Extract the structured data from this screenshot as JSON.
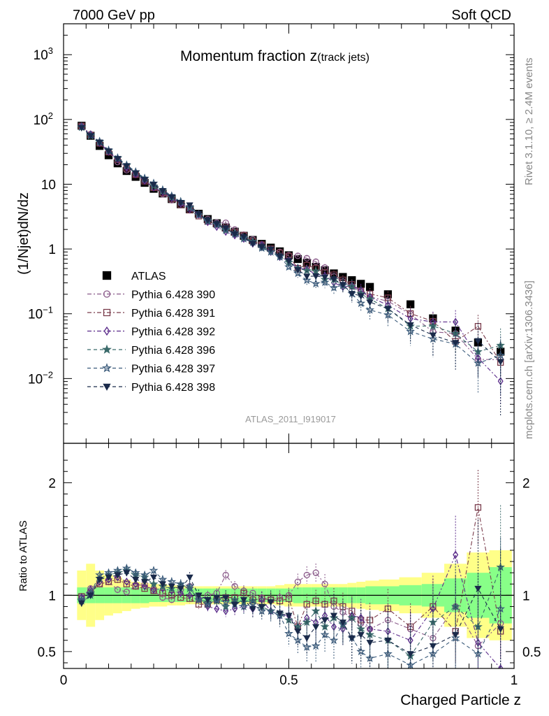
{
  "header": {
    "left": "7000 GeV pp",
    "right": "Soft QCD"
  },
  "side": {
    "rivet": "Rivet 3.1.10, ≥ 2.4M events",
    "mcplots": "mcplots.cern.ch [arXiv:1306.3436]"
  },
  "chart_data": {
    "type": "scatter",
    "title": "Momentum fraction",
    "title_var": "z",
    "title_sub": "(track jets)",
    "xlabel": "Charged Particle z",
    "ylabel": "(1/Njet)dN/dz",
    "ratio_label": "Ratio to ATLAS",
    "analysis_id": "ATLAS_2011_I919017",
    "xlim": [
      0,
      1
    ],
    "ylim": [
      0.001,
      3000
    ],
    "y_scale": "log",
    "ratio_ylim": [
      0.35,
      2.35
    ],
    "x_ticks": [
      "0",
      "0.5",
      "1"
    ],
    "y_ticks": [
      "10^3",
      "10^2",
      "10",
      "1",
      "10^-1",
      "10^-2"
    ],
    "ratio_ticks": [
      "0.5",
      "1",
      "2"
    ],
    "x": [
      0.04,
      0.06,
      0.08,
      0.1,
      0.12,
      0.14,
      0.16,
      0.18,
      0.2,
      0.22,
      0.24,
      0.26,
      0.28,
      0.3,
      0.32,
      0.34,
      0.36,
      0.38,
      0.4,
      0.42,
      0.44,
      0.46,
      0.48,
      0.5,
      0.52,
      0.54,
      0.56,
      0.58,
      0.6,
      0.62,
      0.64,
      0.66,
      0.68,
      0.72,
      0.77,
      0.82,
      0.87,
      0.92,
      0.97
    ],
    "atlas": [
      80,
      56,
      39,
      28,
      21,
      16,
      13,
      10.5,
      8.5,
      7.2,
      5.9,
      4.9,
      4.1,
      3.5,
      2.9,
      2.5,
      2.15,
      1.85,
      1.6,
      1.38,
      1.2,
      1.05,
      0.92,
      0.8,
      0.7,
      0.61,
      0.53,
      0.47,
      0.42,
      0.37,
      0.33,
      0.29,
      0.26,
      0.2,
      0.14,
      0.085,
      0.055,
      0.036,
      0.026
    ],
    "atlas_band_inner": [
      0.07,
      0.07,
      0.07,
      0.07,
      0.07,
      0.07,
      0.07,
      0.07,
      0.06,
      0.06,
      0.06,
      0.06,
      0.06,
      0.06,
      0.06,
      0.06,
      0.06,
      0.06,
      0.06,
      0.06,
      0.06,
      0.06,
      0.06,
      0.06,
      0.07,
      0.07,
      0.07,
      0.07,
      0.07,
      0.07,
      0.07,
      0.07,
      0.08,
      0.08,
      0.09,
      0.1,
      0.15,
      0.2,
      0.25
    ],
    "atlas_band_outer": [
      0.22,
      0.28,
      0.22,
      0.18,
      0.16,
      0.14,
      0.12,
      0.11,
      0.1,
      0.1,
      0.09,
      0.09,
      0.08,
      0.08,
      0.08,
      0.08,
      0.08,
      0.08,
      0.08,
      0.08,
      0.08,
      0.08,
      0.09,
      0.1,
      0.1,
      0.1,
      0.1,
      0.1,
      0.1,
      0.1,
      0.11,
      0.12,
      0.13,
      0.14,
      0.16,
      0.2,
      0.28,
      0.38,
      0.4
    ],
    "series": [
      {
        "name": "ATLAS",
        "color": "#000000",
        "marker": "square-filled",
        "line": "none",
        "ratio": []
      },
      {
        "name": "Pythia 6.428 390",
        "color": "#8a5a8a",
        "marker": "circle-open",
        "line": "dash-dot",
        "ratio": [
          0.98,
          1.06,
          1.1,
          1.12,
          1.05,
          1.03,
          1.08,
          1.1,
          1.04,
          0.98,
          0.96,
          1.05,
          1.08,
          0.96,
          1.0,
          1.02,
          1.18,
          1.08,
          1.04,
          1.02,
          0.98,
          0.96,
          0.98,
          1.0,
          1.12,
          1.18,
          1.2,
          1.1,
          0.9,
          0.85,
          0.8,
          0.75,
          0.7,
          0.78,
          0.7,
          0.62,
          0.9,
          0.55,
          0.75
        ]
      },
      {
        "name": "Pythia 6.428 391",
        "color": "#7a3c4c",
        "marker": "square-open",
        "line": "dash-dot",
        "ratio": [
          0.99,
          1.02,
          1.1,
          1.12,
          1.14,
          1.1,
          1.08,
          1.06,
          1.04,
          1.02,
          1.0,
          0.98,
          0.97,
          0.92,
          0.92,
          0.96,
          0.98,
          0.98,
          1.02,
          0.96,
          0.97,
          0.96,
          0.95,
          0.97,
          0.72,
          0.92,
          0.95,
          0.92,
          0.95,
          0.9,
          0.86,
          0.78,
          0.78,
          0.88,
          0.72,
          0.9,
          0.68,
          1.78,
          0.68
        ]
      },
      {
        "name": "Pythia 6.428 392",
        "color": "#5a2a8a",
        "marker": "diamond-open",
        "line": "dash-dot",
        "ratio": [
          0.98,
          1.05,
          1.12,
          1.14,
          1.16,
          1.12,
          1.1,
          1.08,
          1.05,
          1.06,
          1.04,
          1.02,
          1.0,
          0.98,
          0.9,
          0.88,
          0.86,
          0.88,
          0.9,
          0.88,
          0.96,
          0.86,
          0.82,
          0.82,
          0.72,
          0.8,
          0.76,
          0.82,
          0.72,
          0.7,
          0.82,
          0.8,
          0.7,
          0.68,
          0.6,
          0.88,
          1.36,
          0.58,
          0.35
        ]
      },
      {
        "name": "Pythia 6.428 396",
        "color": "#3a6a6a",
        "marker": "star-filled",
        "line": "dash",
        "ratio": [
          0.95,
          1.0,
          1.15,
          1.18,
          1.2,
          1.22,
          1.18,
          1.16,
          1.1,
          1.08,
          1.06,
          1.1,
          1.06,
          0.96,
          0.94,
          0.95,
          0.9,
          0.96,
          0.94,
          0.95,
          0.9,
          0.86,
          0.84,
          0.78,
          0.72,
          0.76,
          0.86,
          0.72,
          0.8,
          0.74,
          0.8,
          0.7,
          0.65,
          0.6,
          0.46,
          0.76,
          0.9,
          0.72,
          1.25
        ]
      },
      {
        "name": "Pythia 6.428 397",
        "color": "#3a5a7a",
        "marker": "star-open",
        "line": "dash",
        "ratio": [
          0.96,
          1.02,
          1.18,
          1.2,
          1.22,
          1.24,
          1.2,
          1.18,
          1.22,
          1.14,
          1.12,
          1.1,
          1.08,
          0.96,
          0.92,
          0.96,
          0.94,
          0.92,
          0.9,
          0.92,
          0.86,
          0.86,
          0.82,
          0.66,
          0.6,
          0.54,
          0.55,
          0.65,
          0.6,
          0.75,
          0.62,
          0.5,
          0.44,
          0.48,
          0.38,
          0.48,
          0.62,
          0.48,
          0.88
        ]
      },
      {
        "name": "Pythia 6.428 398",
        "color": "#1a2a4a",
        "marker": "triangle-down-filled",
        "line": "dash",
        "ratio": [
          0.93,
          1.0,
          1.14,
          1.16,
          1.18,
          1.2,
          1.14,
          1.12,
          1.16,
          1.1,
          1.08,
          1.06,
          1.16,
          1.0,
          0.96,
          0.98,
          0.98,
          0.92,
          0.96,
          0.88,
          0.9,
          0.94,
          0.84,
          0.82,
          0.68,
          0.62,
          0.72,
          0.78,
          0.82,
          0.76,
          0.62,
          0.65,
          0.58,
          0.6,
          0.48,
          0.55,
          0.65,
          1.06,
          0.7
        ]
      }
    ]
  }
}
